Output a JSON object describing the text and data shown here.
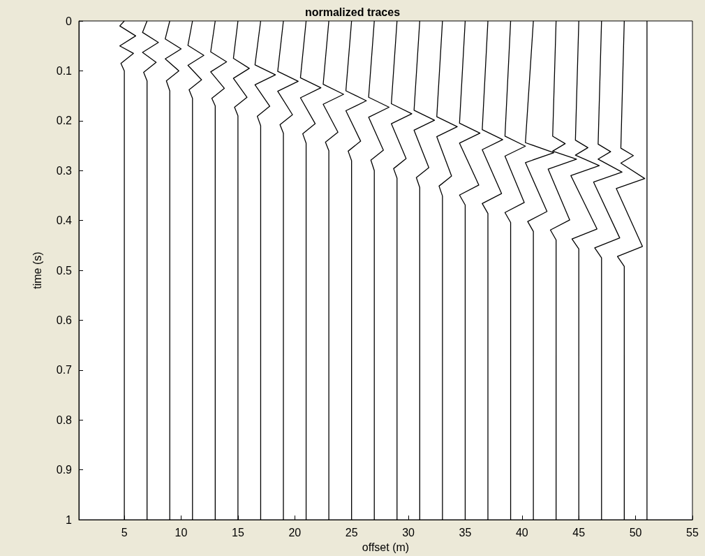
{
  "chart_data": {
    "type": "line",
    "title": "normalized traces",
    "xlabel": "offset (m)",
    "ylabel": "time (s)",
    "xlim": [
      1,
      55
    ],
    "xticks": [
      5,
      10,
      15,
      20,
      25,
      30,
      35,
      40,
      45,
      50,
      55
    ],
    "ylim": [
      1,
      0
    ],
    "yticks": [
      0,
      0.1,
      0.2,
      0.3,
      0.4,
      0.5,
      0.6,
      0.7,
      0.8,
      0.9,
      1
    ],
    "series": [
      {
        "color": "#000000",
        "x": [
          5,
          4.6,
          6,
          4.6,
          5.8,
          4.7,
          5,
          5
        ],
        "values": [
          0,
          0.01,
          0.03,
          0.05,
          0.065,
          0.085,
          0.1,
          1
        ]
      },
      {
        "color": "#000000",
        "x": [
          7,
          6.6,
          8,
          6.6,
          7.8,
          6.7,
          7,
          7
        ],
        "values": [
          0,
          0.023,
          0.043,
          0.063,
          0.083,
          0.103,
          0.12,
          1
        ]
      },
      {
        "color": "#000000",
        "x": [
          9,
          8.6,
          10,
          8.6,
          9.8,
          8.7,
          9,
          9
        ],
        "values": [
          0,
          0.036,
          0.056,
          0.076,
          0.1,
          0.12,
          0.14,
          1
        ]
      },
      {
        "color": "#000000",
        "x": [
          11,
          10.6,
          12,
          10.6,
          11.8,
          10.7,
          11,
          11
        ],
        "values": [
          0,
          0.049,
          0.069,
          0.089,
          0.118,
          0.138,
          0.155,
          1
        ]
      },
      {
        "color": "#000000",
        "x": [
          13,
          12.6,
          14,
          12.6,
          13.8,
          12.7,
          13,
          13
        ],
        "values": [
          0,
          0.062,
          0.082,
          0.102,
          0.135,
          0.155,
          0.17,
          1
        ]
      },
      {
        "color": "#000000",
        "x": [
          15,
          14.6,
          16,
          14.6,
          15.8,
          14.7,
          15,
          15
        ],
        "values": [
          0,
          0.075,
          0.095,
          0.115,
          0.153,
          0.173,
          0.19,
          1
        ]
      },
      {
        "color": "#000000",
        "x": [
          17,
          16.5,
          18.3,
          16.5,
          17.8,
          16.7,
          17,
          17
        ],
        "values": [
          0,
          0.088,
          0.108,
          0.128,
          0.171,
          0.191,
          0.21,
          1
        ]
      },
      {
        "color": "#000000",
        "x": [
          19,
          18.5,
          20.3,
          18.5,
          19.8,
          18.7,
          19,
          19
        ],
        "values": [
          0,
          0.101,
          0.121,
          0.141,
          0.188,
          0.208,
          0.225,
          1
        ]
      },
      {
        "color": "#000000",
        "x": [
          21,
          20.5,
          22.3,
          20.5,
          21.8,
          20.7,
          21,
          21
        ],
        "values": [
          0,
          0.114,
          0.134,
          0.154,
          0.206,
          0.226,
          0.245,
          1
        ]
      },
      {
        "color": "#000000",
        "x": [
          23,
          22.5,
          24.3,
          22.5,
          23.8,
          22.7,
          23,
          23
        ],
        "values": [
          0,
          0.127,
          0.147,
          0.167,
          0.223,
          0.243,
          0.26,
          1
        ]
      },
      {
        "color": "#000000",
        "x": [
          25,
          24.5,
          26.3,
          24.5,
          25.8,
          24.7,
          25,
          25
        ],
        "values": [
          0,
          0.14,
          0.16,
          0.18,
          0.241,
          0.261,
          0.28,
          1
        ]
      },
      {
        "color": "#000000",
        "x": [
          27,
          26.5,
          28.3,
          26.5,
          27.8,
          26.7,
          27,
          27
        ],
        "values": [
          0,
          0.153,
          0.173,
          0.193,
          0.259,
          0.279,
          0.3,
          1
        ]
      },
      {
        "color": "#000000",
        "x": [
          29,
          28.5,
          30.3,
          28.5,
          29.8,
          28.7,
          29,
          29
        ],
        "values": [
          0,
          0.166,
          0.186,
          0.206,
          0.276,
          0.296,
          0.315,
          1
        ]
      },
      {
        "color": "#000000",
        "x": [
          31,
          30.5,
          32.3,
          30.5,
          31.8,
          30.7,
          31,
          31
        ],
        "values": [
          0,
          0.179,
          0.199,
          0.219,
          0.294,
          0.314,
          0.334,
          1
        ]
      },
      {
        "color": "#000000",
        "x": [
          33,
          32.5,
          34.3,
          32.5,
          33.8,
          32.7,
          33,
          33
        ],
        "values": [
          0,
          0.192,
          0.212,
          0.232,
          0.311,
          0.331,
          0.351,
          1
        ]
      },
      {
        "color": "#000000",
        "x": [
          35,
          34.5,
          36.3,
          34.5,
          36.2,
          34.5,
          35,
          35
        ],
        "values": [
          0,
          0.205,
          0.225,
          0.245,
          0.329,
          0.349,
          0.369,
          1
        ]
      },
      {
        "color": "#000000",
        "x": [
          37,
          36.5,
          38.3,
          36.5,
          38.2,
          36.5,
          37,
          37
        ],
        "values": [
          0,
          0.218,
          0.238,
          0.258,
          0.346,
          0.366,
          0.386,
          1
        ]
      },
      {
        "color": "#000000",
        "x": [
          39,
          38.5,
          40.3,
          38.5,
          40.2,
          38.5,
          39,
          39
        ],
        "values": [
          0,
          0.231,
          0.251,
          0.271,
          0.364,
          0.384,
          0.404,
          1
        ]
      },
      {
        "color": "#000000",
        "x": [
          41,
          40.3,
          42.8,
          40.3,
          42.2,
          40.5,
          41,
          41
        ],
        "values": [
          0,
          0.244,
          0.264,
          0.284,
          0.382,
          0.402,
          0.422,
          1
        ]
      },
      {
        "color": "#000000",
        "x": [
          43,
          42.7,
          43.8,
          42.7,
          44.8,
          42.3,
          44.2,
          42.5,
          43,
          43
        ],
        "values": [
          0,
          0.231,
          0.246,
          0.261,
          0.277,
          0.297,
          0.399,
          0.419,
          0.439,
          1
        ]
      },
      {
        "color": "#000000",
        "x": [
          45,
          44.7,
          45.8,
          44.7,
          46.8,
          44.3,
          46.6,
          44.4,
          45,
          45
        ],
        "values": [
          0,
          0.239,
          0.254,
          0.269,
          0.29,
          0.31,
          0.417,
          0.437,
          0.457,
          1
        ]
      },
      {
        "color": "#000000",
        "x": [
          47,
          46.7,
          47.8,
          46.7,
          48.8,
          46.3,
          48.6,
          46.4,
          47,
          47
        ],
        "values": [
          0,
          0.247,
          0.262,
          0.277,
          0.303,
          0.323,
          0.435,
          0.455,
          0.475,
          1
        ]
      },
      {
        "color": "#000000",
        "x": [
          49,
          48.7,
          49.8,
          48.7,
          50.8,
          48.3,
          50.6,
          48.4,
          49,
          49
        ],
        "values": [
          0,
          0.255,
          0.27,
          0.285,
          0.316,
          0.336,
          0.452,
          0.472,
          0.492,
          1
        ]
      },
      {
        "color": "#000000",
        "x": [
          51,
          51
        ],
        "values": [
          0,
          1
        ]
      }
    ]
  }
}
